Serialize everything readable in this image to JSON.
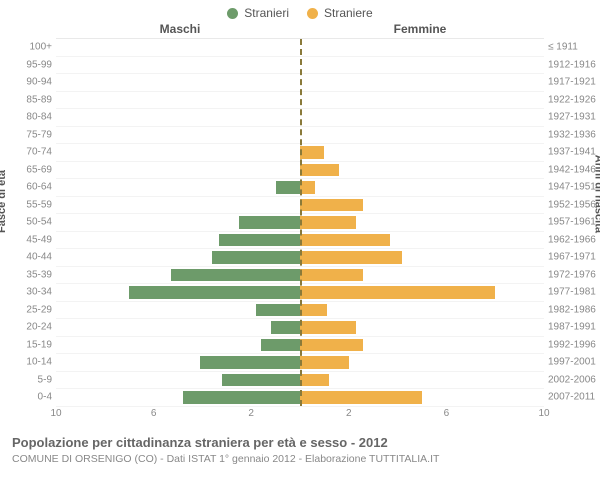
{
  "legend": {
    "male": {
      "label": "Stranieri",
      "color": "#6d9b6a"
    },
    "female": {
      "label": "Straniere",
      "color": "#f0b14a"
    }
  },
  "headers": {
    "male": "Maschi",
    "female": "Femmine"
  },
  "axis_labels": {
    "left": "Fasce di età",
    "right": "Anni di nascita"
  },
  "title": "Popolazione per cittadinanza straniera per età e sesso - 2012",
  "subtitle": "COMUNE DI ORSENIGO (CO) - Dati ISTAT 1° gennaio 2012 - Elaborazione TUTTITALIA.IT",
  "chart": {
    "type": "population-pyramid",
    "xmax": 10,
    "xticks": [
      10,
      6,
      2,
      2,
      6,
      10
    ],
    "background_color": "#ffffff",
    "grid_color": "#f0f0f0",
    "centerline_color": "#8a7a3a",
    "bar_height_ratio": 0.78,
    "rows": [
      {
        "age": "100+",
        "birth": "≤ 1911",
        "male": 0,
        "female": 0
      },
      {
        "age": "95-99",
        "birth": "1912-1916",
        "male": 0,
        "female": 0
      },
      {
        "age": "90-94",
        "birth": "1917-1921",
        "male": 0,
        "female": 0
      },
      {
        "age": "85-89",
        "birth": "1922-1926",
        "male": 0,
        "female": 0
      },
      {
        "age": "80-84",
        "birth": "1927-1931",
        "male": 0,
        "female": 0
      },
      {
        "age": "75-79",
        "birth": "1932-1936",
        "male": 0,
        "female": 0
      },
      {
        "age": "70-74",
        "birth": "1937-1941",
        "male": 0,
        "female": 1
      },
      {
        "age": "65-69",
        "birth": "1942-1946",
        "male": 0,
        "female": 1.6
      },
      {
        "age": "60-64",
        "birth": "1947-1951",
        "male": 1,
        "female": 0.6
      },
      {
        "age": "55-59",
        "birth": "1952-1956",
        "male": 0,
        "female": 2.6
      },
      {
        "age": "50-54",
        "birth": "1957-1961",
        "male": 2.5,
        "female": 2.3
      },
      {
        "age": "45-49",
        "birth": "1962-1966",
        "male": 3.3,
        "female": 3.7
      },
      {
        "age": "40-44",
        "birth": "1967-1971",
        "male": 3.6,
        "female": 4.2
      },
      {
        "age": "35-39",
        "birth": "1972-1976",
        "male": 5.3,
        "female": 2.6
      },
      {
        "age": "30-34",
        "birth": "1977-1981",
        "male": 7.0,
        "female": 8.0
      },
      {
        "age": "25-29",
        "birth": "1982-1986",
        "male": 1.8,
        "female": 1.1
      },
      {
        "age": "20-24",
        "birth": "1987-1991",
        "male": 1.2,
        "female": 2.3
      },
      {
        "age": "15-19",
        "birth": "1992-1996",
        "male": 1.6,
        "female": 2.6
      },
      {
        "age": "10-14",
        "birth": "1997-2001",
        "male": 4.1,
        "female": 2.0
      },
      {
        "age": "5-9",
        "birth": "2002-2006",
        "male": 3.2,
        "female": 1.2
      },
      {
        "age": "0-4",
        "birth": "2007-2011",
        "male": 4.8,
        "female": 5.0
      }
    ]
  }
}
